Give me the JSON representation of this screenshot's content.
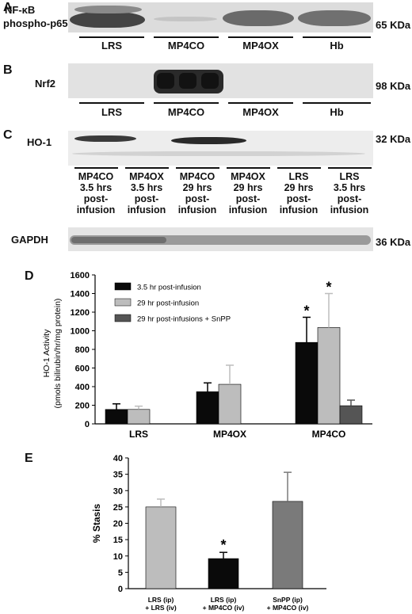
{
  "panel_a": {
    "letter": "A",
    "label_line1": "NF-κB",
    "label_line2": "phospho-p65",
    "size": "65 KDa",
    "lanes": [
      "LRS",
      "MP4CO",
      "MP4OX",
      "Hb"
    ]
  },
  "panel_b": {
    "letter": "B",
    "label": "Nrf2",
    "size": "98 KDa",
    "lanes": [
      "LRS",
      "MP4CO",
      "MP4OX",
      "Hb"
    ]
  },
  "panel_c": {
    "letter": "C",
    "label": "HO-1",
    "size": "32 KDa",
    "lanes": [
      [
        "MP4CO",
        "3.5 hrs",
        "post-",
        "infusion"
      ],
      [
        "MP4OX",
        "3.5 hrs",
        "post-",
        "infusion"
      ],
      [
        "MP4CO",
        "29 hrs",
        "post-",
        "infusion"
      ],
      [
        "MP4OX",
        "29 hrs",
        "post-",
        "infusion"
      ],
      [
        "LRS",
        "29 hrs",
        "post-",
        "infusion"
      ],
      [
        "LRS",
        "3.5 hrs",
        "post-",
        "infusion"
      ]
    ],
    "loading_label": "GAPDH",
    "loading_size": "36 KDa"
  },
  "panel_d": {
    "letter": "D",
    "colors": {
      "s1": "#0a0a0a",
      "s2": "#bdbdbd",
      "s3": "#555555"
    },
    "chart_data": {
      "type": "bar",
      "categories": [
        "LRS",
        "MP4OX",
        "MP4CO"
      ],
      "series": [
        {
          "name": "3.5 hr post-infusion",
          "values": [
            155,
            345,
            875
          ],
          "errors": [
            60,
            95,
            270
          ],
          "significant": [
            false,
            false,
            true
          ]
        },
        {
          "name": "29 hr post-infusion",
          "values": [
            155,
            425,
            1035
          ],
          "errors": [
            35,
            205,
            365
          ],
          "significant": [
            false,
            false,
            true
          ]
        },
        {
          "name": "29 hr post-infusions + SnPP",
          "values": [
            null,
            null,
            195
          ],
          "errors": [
            null,
            null,
            60
          ],
          "significant": [
            false,
            false,
            false
          ]
        }
      ],
      "xlabel": "",
      "ylabel_line1": "HO-1 Activity",
      "ylabel_line2": "(pmols bilirubin/hr/mg protein)",
      "ylim": [
        0,
        1600
      ],
      "yticks": [
        "0",
        "200",
        "400",
        "600",
        "800",
        "1000",
        "1200",
        "1400",
        "1600"
      ],
      "legend": "top-left",
      "significance_marker": "*"
    }
  },
  "panel_e": {
    "letter": "E",
    "colors": [
      "#bdbdbd",
      "#0a0a0a",
      "#7a7a7a"
    ],
    "chart_data": {
      "type": "bar",
      "categories": [
        [
          "LRS (ip)",
          "+ LRS (iv)"
        ],
        [
          "LRS (ip)",
          "+ MP4CO (iv)"
        ],
        [
          "SnPP (ip)",
          "+ MP4CO (iv)"
        ]
      ],
      "values": [
        25,
        9.2,
        26.7
      ],
      "errors": [
        2.4,
        1.9,
        8.9
      ],
      "significant": [
        false,
        true,
        false
      ],
      "ylabel": "% Stasis",
      "xlabel": "",
      "ylim": [
        0,
        40
      ],
      "yticks": [
        "0",
        "5",
        "10",
        "15",
        "20",
        "25",
        "30",
        "35",
        "40"
      ],
      "significance_marker": "*"
    }
  }
}
